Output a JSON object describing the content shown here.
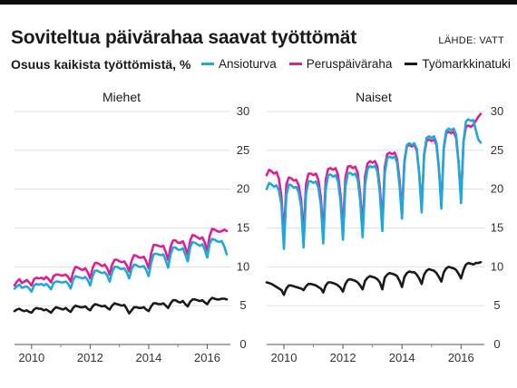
{
  "header": {
    "title": "Soviteltua päivärahaa saavat työttömät",
    "source": "LÄHDE: VATT",
    "subtitle": "Osuus kaikista työttömistä, %"
  },
  "legend": [
    {
      "name": "Ansioturva",
      "color": "#1fa8dc"
    },
    {
      "name": "Peruspäiväraha",
      "color": "#de1f8e"
    },
    {
      "name": "Työmarkkinatuki",
      "color": "#1a1a1a"
    }
  ],
  "chart_data": [
    {
      "type": "line",
      "title": "Miehet",
      "x_ticks": [
        "2010",
        "2012",
        "2014",
        "2016"
      ],
      "ylim": [
        0,
        30
      ],
      "y_ticks": [
        0,
        5,
        10,
        15,
        20,
        25,
        30
      ],
      "grid": true,
      "x_start": "2009-06",
      "x_end": "2016-09",
      "series": [
        {
          "name": "Ansioturva",
          "color": "#1fa8dc",
          "values": [
            7.2,
            7.5,
            7.7,
            7.3,
            7.4,
            7.5,
            7.2,
            6.8,
            7.6,
            7.8,
            7.7,
            7.8,
            7.6,
            7.8,
            7.5,
            7.1,
            7.9,
            8.1,
            8.1,
            8.0,
            8.0,
            8.1,
            7.8,
            7.2,
            8.3,
            8.8,
            8.7,
            8.6,
            8.5,
            8.7,
            8.3,
            7.6,
            8.8,
            9.5,
            9.5,
            9.3,
            9.2,
            9.3,
            8.9,
            8.1,
            9.3,
            10.0,
            10.0,
            9.8,
            9.7,
            9.8,
            9.3,
            8.5,
            9.7,
            10.3,
            10.2,
            10.0,
            10.0,
            10.1,
            9.6,
            8.8,
            10.5,
            11.6,
            11.7,
            11.6,
            11.5,
            11.6,
            10.8,
            9.9,
            11.6,
            12.5,
            12.5,
            12.2,
            12.2,
            12.4,
            11.6,
            10.7,
            12.5,
            13.2,
            13.1,
            12.9,
            12.7,
            12.9,
            12.2,
            11.2,
            13.0,
            13.6,
            13.5,
            13.3,
            13.2,
            13.3,
            12.6,
            11.6
          ]
        },
        {
          "name": "Peruspäiväraha",
          "color": "#de1f8e",
          "values": [
            7.6,
            8.1,
            8.4,
            7.9,
            8.1,
            8.3,
            8.0,
            7.6,
            8.4,
            8.6,
            8.5,
            8.6,
            8.4,
            8.7,
            8.4,
            8.0,
            8.8,
            9.0,
            9.0,
            8.9,
            8.9,
            9.0,
            8.7,
            8.1,
            9.3,
            10.0,
            9.9,
            9.7,
            9.6,
            9.8,
            9.3,
            8.5,
            9.8,
            10.5,
            10.5,
            10.3,
            10.1,
            10.3,
            9.8,
            9.0,
            10.3,
            10.9,
            10.9,
            10.7,
            10.6,
            10.7,
            10.2,
            9.4,
            10.8,
            11.5,
            11.4,
            11.2,
            11.2,
            11.3,
            10.7,
            9.8,
            11.7,
            12.8,
            12.8,
            12.7,
            12.6,
            12.7,
            11.9,
            10.9,
            12.6,
            13.4,
            13.4,
            13.1,
            13.1,
            13.3,
            12.5,
            11.6,
            13.4,
            14.1,
            14.0,
            13.8,
            13.6,
            13.8,
            13.1,
            12.1,
            14.0,
            14.9,
            14.8,
            14.6,
            14.5,
            14.6,
            14.8,
            14.6
          ]
        },
        {
          "name": "Työmarkkinatuki",
          "color": "#1a1a1a",
          "values": [
            4.3,
            4.5,
            4.6,
            4.4,
            4.3,
            4.4,
            4.2,
            4.1,
            4.5,
            4.7,
            4.6,
            4.6,
            4.4,
            4.5,
            4.3,
            4.1,
            4.5,
            4.8,
            4.7,
            4.6,
            4.5,
            4.7,
            4.4,
            4.2,
            4.7,
            5.0,
            4.9,
            4.8,
            4.8,
            4.9,
            4.6,
            4.4,
            4.9,
            5.2,
            5.1,
            5.0,
            4.9,
            5.0,
            4.7,
            4.5,
            5.0,
            5.3,
            5.2,
            5.1,
            5.0,
            5.1,
            4.6,
            4.0,
            4.4,
            4.8,
            4.8,
            4.7,
            4.7,
            4.8,
            4.5,
            4.3,
            4.9,
            5.3,
            5.3,
            5.2,
            5.2,
            5.3,
            5.0,
            4.7,
            5.3,
            5.7,
            5.7,
            5.5,
            5.4,
            5.6,
            5.2,
            4.9,
            5.5,
            5.8,
            5.8,
            5.7,
            5.6,
            5.7,
            5.4,
            5.2,
            5.7,
            6.0,
            5.9,
            5.8,
            5.8,
            5.9,
            5.9,
            5.8
          ]
        }
      ]
    },
    {
      "type": "line",
      "title": "Naiset",
      "x_ticks": [
        "2010",
        "2012",
        "2014",
        "2016"
      ],
      "ylim": [
        0,
        30
      ],
      "y_ticks": [
        0,
        5,
        10,
        15,
        20,
        25,
        30
      ],
      "grid": true,
      "x_start": "2009-06",
      "x_end": "2016-09",
      "series": [
        {
          "name": "Ansioturva",
          "color": "#1fa8dc",
          "values": [
            20.0,
            20.8,
            20.6,
            20.3,
            20.5,
            19.8,
            18.0,
            12.3,
            19.2,
            20.6,
            20.5,
            20.2,
            20.3,
            19.6,
            17.8,
            12.5,
            19.4,
            21.0,
            21.0,
            20.8,
            21.0,
            20.2,
            18.0,
            13.0,
            20.0,
            21.8,
            21.9,
            21.6,
            21.8,
            21.0,
            18.5,
            13.5,
            20.3,
            22.0,
            22.1,
            21.8,
            22.0,
            21.2,
            18.6,
            13.8,
            20.6,
            22.6,
            23.0,
            22.8,
            23.0,
            22.3,
            19.5,
            14.6,
            22.0,
            24.0,
            24.2,
            24.0,
            24.2,
            23.4,
            20.5,
            16.2,
            23.4,
            25.7,
            25.9,
            25.7,
            25.9,
            25.2,
            22.0,
            17.0,
            24.5,
            26.6,
            26.8,
            26.6,
            26.8,
            26.0,
            22.8,
            17.5,
            25.4,
            27.5,
            27.8,
            27.6,
            27.8,
            27.0,
            23.5,
            18.2,
            26.0,
            28.7,
            29.0,
            28.8,
            28.9,
            27.6,
            26.4,
            26.0
          ]
        },
        {
          "name": "Peruspäiväraha",
          "color": "#de1f8e",
          "values": [
            21.8,
            22.5,
            22.3,
            22.0,
            22.2,
            21.3,
            19.0,
            13.8,
            20.6,
            21.5,
            21.4,
            21.1,
            21.2,
            20.5,
            18.6,
            14.2,
            20.6,
            22.0,
            22.0,
            21.8,
            22.0,
            21.2,
            18.9,
            14.4,
            21.2,
            22.6,
            22.7,
            22.5,
            22.7,
            21.8,
            19.3,
            14.8,
            21.5,
            22.9,
            23.0,
            22.7,
            22.9,
            22.1,
            19.4,
            15.0,
            21.6,
            23.3,
            23.6,
            23.4,
            23.6,
            22.9,
            20.2,
            15.6,
            22.8,
            24.5,
            24.7,
            24.5,
            24.7,
            23.9,
            21.2,
            17.0,
            23.7,
            25.5,
            25.7,
            25.5,
            25.7,
            25.0,
            22.0,
            17.5,
            24.4,
            26.2,
            26.4,
            26.2,
            26.4,
            25.7,
            22.6,
            18.0,
            25.3,
            27.2,
            27.4,
            27.2,
            27.4,
            26.6,
            23.4,
            18.8,
            26.1,
            28.0,
            28.2,
            28.0,
            28.3,
            28.8,
            29.3,
            29.7
          ]
        },
        {
          "name": "Työmarkkinatuki",
          "color": "#1a1a1a",
          "values": [
            8.0,
            7.9,
            7.8,
            7.6,
            7.4,
            7.2,
            7.0,
            6.4,
            7.2,
            7.6,
            7.6,
            7.5,
            7.4,
            7.3,
            7.2,
            7.0,
            7.5,
            7.8,
            7.8,
            7.7,
            7.6,
            7.4,
            7.2,
            6.7,
            7.6,
            8.0,
            8.0,
            7.9,
            7.8,
            7.6,
            7.3,
            6.8,
            7.8,
            8.3,
            8.4,
            8.3,
            8.2,
            8.0,
            7.6,
            7.1,
            8.2,
            8.6,
            8.8,
            8.7,
            8.6,
            8.4,
            8.0,
            7.1,
            8.6,
            9.0,
            9.2,
            9.1,
            9.0,
            8.8,
            8.2,
            7.4,
            8.7,
            9.2,
            9.4,
            9.3,
            9.3,
            9.0,
            8.5,
            7.8,
            9.0,
            9.5,
            9.7,
            9.6,
            9.5,
            9.2,
            8.7,
            8.1,
            9.3,
            9.8,
            10.0,
            9.9,
            9.8,
            9.6,
            9.1,
            8.5,
            9.6,
            10.3,
            10.5,
            10.4,
            10.3,
            10.5,
            10.5,
            10.6
          ]
        }
      ]
    }
  ]
}
